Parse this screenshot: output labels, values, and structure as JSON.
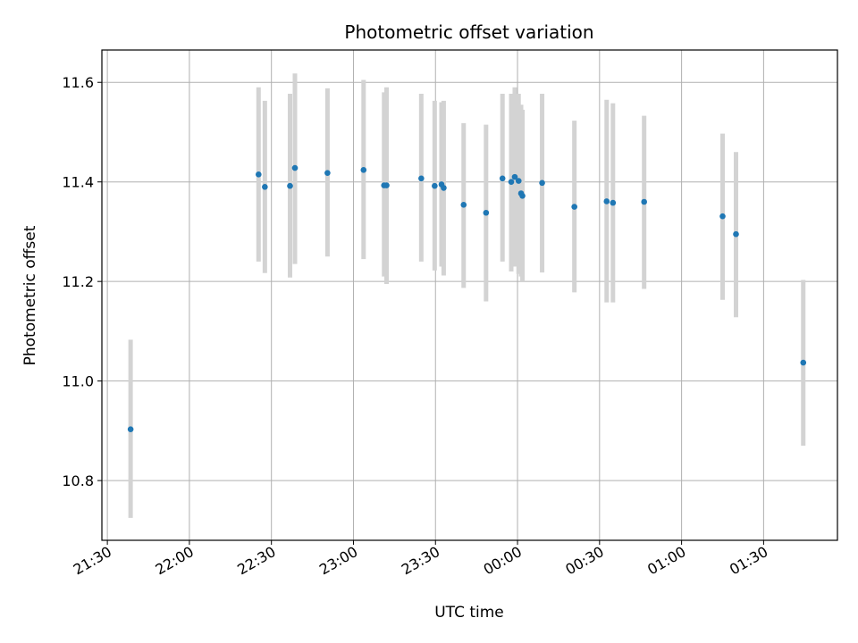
{
  "chart_data": {
    "type": "scatter",
    "title": "Photometric offset variation",
    "xlabel": "UTC time",
    "ylabel": "Photometric offset",
    "grid": true,
    "xlim_minutes": [
      -152,
      117
    ],
    "ylim": [
      10.68,
      11.665
    ],
    "x_ticks": [
      {
        "value": -150,
        "label": "21:30"
      },
      {
        "value": -120,
        "label": "22:00"
      },
      {
        "value": -90,
        "label": "22:30"
      },
      {
        "value": -60,
        "label": "23:00"
      },
      {
        "value": -30,
        "label": "23:30"
      },
      {
        "value": 0,
        "label": "00:00"
      },
      {
        "value": 30,
        "label": "00:30"
      },
      {
        "value": 60,
        "label": "01:00"
      },
      {
        "value": 90,
        "label": "01:30"
      }
    ],
    "y_ticks": [
      {
        "value": 10.8,
        "label": "10.8"
      },
      {
        "value": 11.0,
        "label": "11.0"
      },
      {
        "value": 11.2,
        "label": "11.2"
      },
      {
        "value": 11.4,
        "label": "11.4"
      },
      {
        "value": 11.6,
        "label": "11.6"
      }
    ],
    "point_color": "#1f77b4",
    "errorbar_color": "#d3d3d3",
    "points": [
      {
        "t": -141.5,
        "y": 10.903,
        "lo": 10.725,
        "hi": 11.083
      },
      {
        "t": -94.7,
        "y": 11.415,
        "lo": 11.24,
        "hi": 11.59
      },
      {
        "t": -92.4,
        "y": 11.39,
        "lo": 11.217,
        "hi": 11.563
      },
      {
        "t": -83.2,
        "y": 11.392,
        "lo": 11.208,
        "hi": 11.577
      },
      {
        "t": -81.4,
        "y": 11.428,
        "lo": 11.235,
        "hi": 11.618
      },
      {
        "t": -69.5,
        "y": 11.418,
        "lo": 11.25,
        "hi": 11.588
      },
      {
        "t": -56.3,
        "y": 11.424,
        "lo": 11.245,
        "hi": 11.605
      },
      {
        "t": -48.8,
        "y": 11.393,
        "lo": 11.21,
        "hi": 11.58
      },
      {
        "t": -47.9,
        "y": 11.393,
        "lo": 11.195,
        "hi": 11.59
      },
      {
        "t": -35.2,
        "y": 11.407,
        "lo": 11.24,
        "hi": 11.577
      },
      {
        "t": -30.3,
        "y": 11.392,
        "lo": 11.222,
        "hi": 11.563
      },
      {
        "t": -27.8,
        "y": 11.395,
        "lo": 11.23,
        "hi": 11.56
      },
      {
        "t": -27.0,
        "y": 11.388,
        "lo": 11.212,
        "hi": 11.563
      },
      {
        "t": -19.7,
        "y": 11.354,
        "lo": 11.187,
        "hi": 11.518
      },
      {
        "t": -11.5,
        "y": 11.338,
        "lo": 11.16,
        "hi": 11.515
      },
      {
        "t": -5.5,
        "y": 11.407,
        "lo": 11.24,
        "hi": 11.577
      },
      {
        "t": -2.3,
        "y": 11.4,
        "lo": 11.22,
        "hi": 11.577
      },
      {
        "t": -1.0,
        "y": 11.41,
        "lo": 11.23,
        "hi": 11.59
      },
      {
        "t": 0.4,
        "y": 11.402,
        "lo": 11.215,
        "hi": 11.577
      },
      {
        "t": 1.3,
        "y": 11.377,
        "lo": 11.21,
        "hi": 11.555
      },
      {
        "t": 1.8,
        "y": 11.372,
        "lo": 11.2,
        "hi": 11.545
      },
      {
        "t": 9.0,
        "y": 11.398,
        "lo": 11.218,
        "hi": 11.577
      },
      {
        "t": 20.8,
        "y": 11.35,
        "lo": 11.178,
        "hi": 11.523
      },
      {
        "t": 32.6,
        "y": 11.361,
        "lo": 11.158,
        "hi": 11.565
      },
      {
        "t": 34.9,
        "y": 11.358,
        "lo": 11.158,
        "hi": 11.558
      },
      {
        "t": 46.3,
        "y": 11.36,
        "lo": 11.185,
        "hi": 11.533
      },
      {
        "t": 75.0,
        "y": 11.331,
        "lo": 11.163,
        "hi": 11.497
      },
      {
        "t": 79.9,
        "y": 11.295,
        "lo": 11.128,
        "hi": 11.46
      },
      {
        "t": 104.5,
        "y": 11.037,
        "lo": 10.87,
        "hi": 11.203
      }
    ]
  }
}
